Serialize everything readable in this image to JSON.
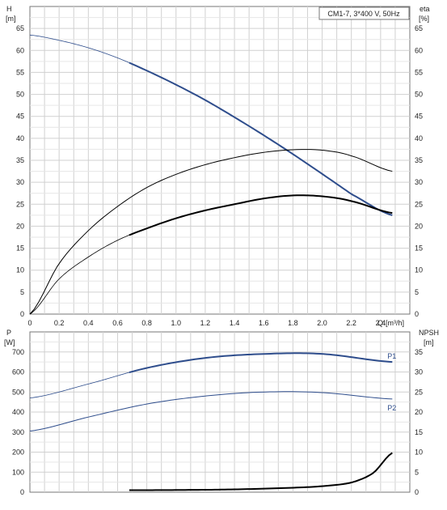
{
  "chart_data": [
    {
      "type": "line",
      "title": "CM1-7, 3*400 V, 50Hz",
      "left_axis": {
        "label": "H",
        "unit": "[m]",
        "ylim": [
          0,
          70
        ],
        "ticks": [
          0,
          5,
          10,
          15,
          20,
          25,
          30,
          35,
          40,
          45,
          50,
          55,
          60,
          65
        ]
      },
      "right_axis": {
        "label": "eta",
        "unit": "[%]",
        "ylim": [
          0,
          70
        ],
        "ticks": [
          0,
          5,
          10,
          15,
          20,
          25,
          30,
          35,
          40,
          45,
          50,
          55,
          60,
          65
        ]
      },
      "x_axis": {
        "label": "Q",
        "unit": "[m³/h]",
        "xlim": [
          0,
          2.6
        ],
        "ticks": [
          0,
          0.2,
          0.4,
          0.6,
          0.8,
          1.0,
          1.2,
          1.4,
          1.6,
          1.8,
          2.0,
          2.2,
          2.4
        ]
      },
      "grid": true,
      "series": [
        {
          "name": "",
          "axis": "left",
          "color": "#2e4d8c",
          "role": "head",
          "x": [
            0,
            0.2,
            0.4,
            0.6,
            0.8,
            1.0,
            1.2,
            1.4,
            1.6,
            1.8,
            2.0,
            2.2,
            2.48
          ],
          "y": [
            63.5,
            62.3,
            60.6,
            58.3,
            55.4,
            52.2,
            48.7,
            44.8,
            40.7,
            36.4,
            31.9,
            27.3,
            22.5
          ],
          "emphasis_from": 0.68
        },
        {
          "name": "",
          "axis": "right",
          "color": "#000000",
          "role": "efficiency-pump",
          "x": [
            0,
            0.2,
            0.4,
            0.6,
            0.8,
            1.0,
            1.2,
            1.4,
            1.6,
            1.8,
            2.0,
            2.2,
            2.48
          ],
          "y": [
            0,
            11.5,
            19.0,
            24.5,
            28.8,
            31.8,
            34.0,
            35.6,
            36.8,
            37.4,
            37.3,
            36.0,
            32.5
          ]
        },
        {
          "name": "",
          "axis": "right",
          "color": "#000000",
          "role": "efficiency-total",
          "x": [
            0,
            0.2,
            0.4,
            0.6,
            0.8,
            1.0,
            1.2,
            1.4,
            1.6,
            1.8,
            2.0,
            2.2,
            2.48
          ],
          "y": [
            0,
            8.0,
            13.0,
            16.8,
            19.5,
            21.8,
            23.6,
            25.0,
            26.3,
            27.0,
            26.8,
            25.7,
            23.0
          ],
          "emphasis_from": 0.68
        }
      ]
    },
    {
      "type": "line",
      "left_axis": {
        "label": "P",
        "unit": "[W]",
        "ylim": [
          0,
          800
        ],
        "ticks": [
          0,
          100,
          200,
          300,
          400,
          500,
          600,
          700
        ]
      },
      "right_axis": {
        "label": "NPSH",
        "unit": "[m]",
        "ylim": [
          0,
          40
        ],
        "ticks": [
          0,
          5,
          10,
          15,
          20,
          25,
          30,
          35
        ]
      },
      "x_axis": {
        "xlim": [
          0,
          2.6
        ]
      },
      "grid": true,
      "series": [
        {
          "name": "P1",
          "axis": "left",
          "color": "#2e4d8c",
          "x": [
            0,
            0.4,
            0.8,
            1.2,
            1.6,
            2.0,
            2.48
          ],
          "y": [
            470,
            540,
            620,
            670,
            690,
            690,
            650
          ],
          "emphasis_from": 0.68
        },
        {
          "name": "P2",
          "axis": "left",
          "color": "#2e4d8c",
          "x": [
            0,
            0.4,
            0.8,
            1.2,
            1.6,
            2.0,
            2.48
          ],
          "y": [
            305,
            375,
            440,
            480,
            500,
            497,
            465
          ]
        },
        {
          "name": "",
          "axis": "right",
          "color": "#000000",
          "role": "npsh",
          "x": [
            0.68,
            1.0,
            1.4,
            1.8,
            2.0,
            2.2,
            2.35,
            2.48
          ],
          "y": [
            0.5,
            0.55,
            0.7,
            1.1,
            1.5,
            2.4,
            4.8,
            9.8
          ]
        }
      ]
    }
  ]
}
